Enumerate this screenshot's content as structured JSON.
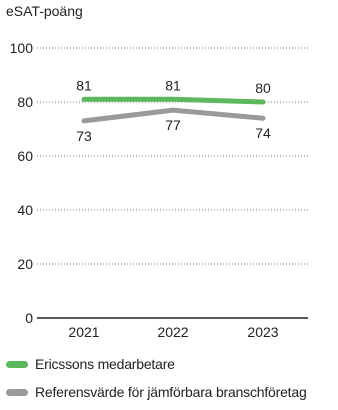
{
  "chart_data": {
    "type": "line",
    "title": "",
    "ylabel": "eSAT-poäng",
    "xlabel": "",
    "categories": [
      "2021",
      "2022",
      "2023"
    ],
    "ylim": [
      0,
      100
    ],
    "yticks": [
      0,
      20,
      40,
      60,
      80,
      100
    ],
    "grid": "dotted horizontal",
    "series": [
      {
        "name": "Ericssons medarbetare",
        "values": [
          81,
          81,
          80
        ],
        "color": "#5cb85c",
        "labels": [
          "81",
          "81",
          "80"
        ],
        "label_position": "above"
      },
      {
        "name": "Referensvärde för jämförbara branschföretag",
        "values": [
          73,
          77,
          74
        ],
        "color": "#9a9a9a",
        "labels": [
          "73",
          "77",
          "74"
        ],
        "label_position": "below"
      }
    ],
    "legend": "bottom-left"
  }
}
